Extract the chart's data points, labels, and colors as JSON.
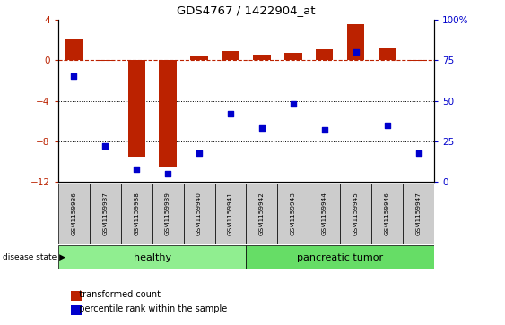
{
  "title": "GDS4767 / 1422904_at",
  "samples": [
    "GSM1159936",
    "GSM1159937",
    "GSM1159938",
    "GSM1159939",
    "GSM1159940",
    "GSM1159941",
    "GSM1159942",
    "GSM1159943",
    "GSM1159944",
    "GSM1159945",
    "GSM1159946",
    "GSM1159947"
  ],
  "bar_values": [
    2.0,
    -0.05,
    -9.5,
    -10.5,
    0.4,
    0.9,
    0.55,
    0.75,
    1.1,
    3.5,
    1.2,
    -0.05
  ],
  "scatter_values": [
    65,
    22,
    8,
    5,
    18,
    42,
    33,
    48,
    32,
    80,
    35,
    18
  ],
  "bar_color": "#bb2200",
  "scatter_color": "#0000cc",
  "ylim_left": [
    -12,
    4
  ],
  "ylim_right": [
    0,
    100
  ],
  "yticks_left": [
    -12,
    -8,
    -4,
    0,
    4
  ],
  "yticks_right": [
    0,
    25,
    50,
    75,
    100
  ],
  "yticklabels_right": [
    "0",
    "25",
    "50",
    "75",
    "100%"
  ],
  "hline_dotted_vals": [
    -4,
    -8
  ],
  "healthy_samples": 6,
  "healthy_label": "healthy",
  "tumor_label": "pancreatic tumor",
  "healthy_color": "#90ee90",
  "tumor_color": "#66dd66",
  "disease_label": "disease state",
  "legend_bar_label": "transformed count",
  "legend_scatter_label": "percentile rank within the sample",
  "bg_color": "#ffffff",
  "plot_bg_color": "#ffffff",
  "label_bg_color": "#cccccc"
}
